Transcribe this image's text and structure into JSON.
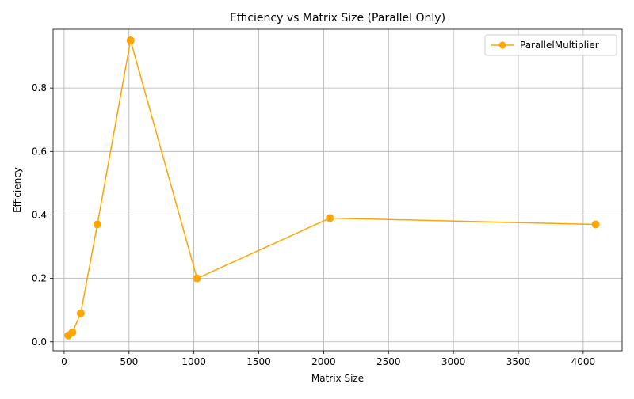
{
  "chart_data": {
    "type": "line",
    "title": "Efficiency vs Matrix Size (Parallel Only)",
    "xlabel": "Matrix Size",
    "ylabel": "Efficiency",
    "xlim": [
      -85,
      4300
    ],
    "ylim": [
      -0.028,
      0.985
    ],
    "xticks": [
      0,
      500,
      1000,
      1500,
      2000,
      2500,
      3000,
      3500,
      4000
    ],
    "yticks": [
      0.0,
      0.2,
      0.4,
      0.6,
      0.8
    ],
    "xtick_labels": [
      "0",
      "500",
      "1000",
      "1500",
      "2000",
      "2500",
      "3000",
      "3500",
      "4000"
    ],
    "ytick_labels": [
      "0.0",
      "0.2",
      "0.4",
      "0.6",
      "0.8"
    ],
    "grid": true,
    "legend_position": "top-right",
    "series": [
      {
        "name": "ParallelMultiplier",
        "color": "#FFA500",
        "marker": "circle",
        "x": [
          32,
          64,
          128,
          256,
          512,
          1024,
          2048,
          4096
        ],
        "y": [
          0.02,
          0.03,
          0.09,
          0.37,
          0.95,
          0.2,
          0.39,
          0.37
        ]
      }
    ]
  }
}
